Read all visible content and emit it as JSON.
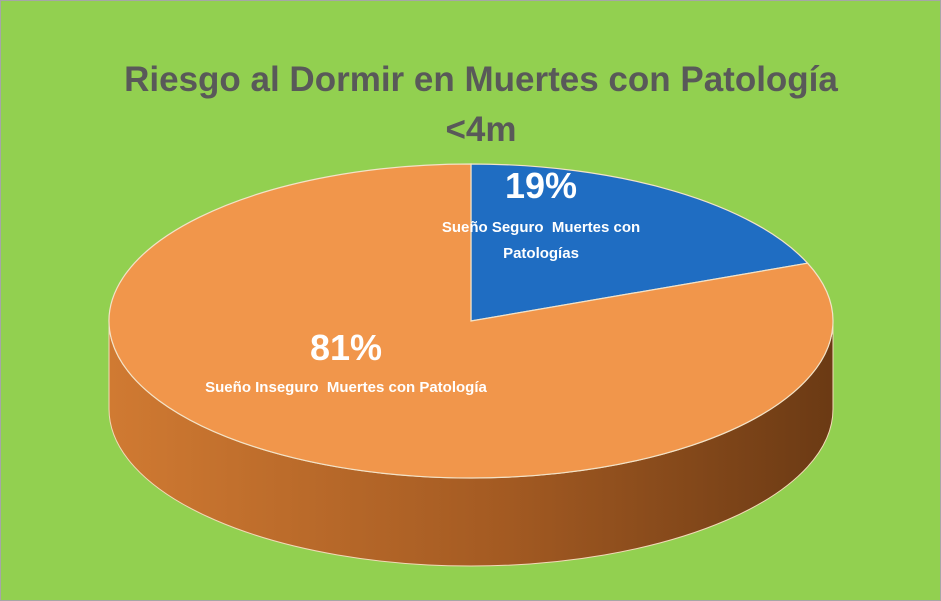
{
  "chart_data": {
    "type": "pie",
    "title": "Riesgo al Dormir en Muertes con Patología <4m",
    "categories": [
      "Sueño Seguro  Muertes con Patologías",
      "Sueño Inseguro  Muertes con Patología"
    ],
    "values": [
      19,
      81
    ],
    "value_labels": [
      "19%",
      "81%"
    ],
    "colors": [
      "#1f6dc2",
      "#f1964b"
    ],
    "background": "#92d050"
  }
}
